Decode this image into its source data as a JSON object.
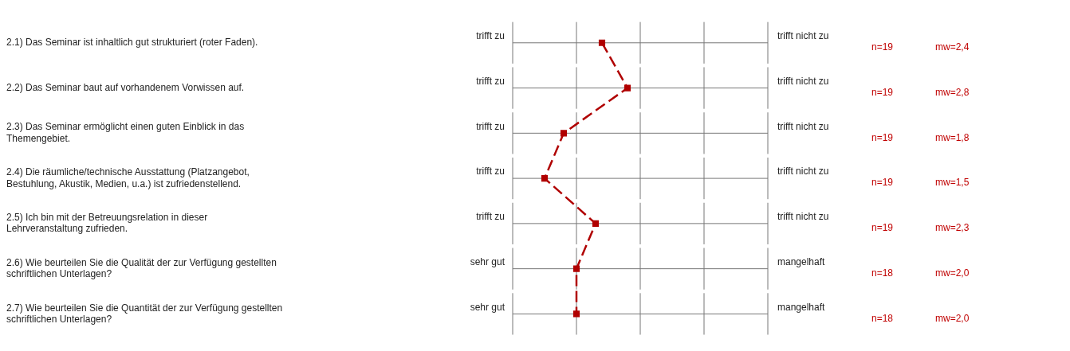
{
  "chart_data": {
    "type": "line",
    "orientation": "horizontal",
    "categories": [
      "2.1) Das Seminar ist inhaltlich gut strukturiert (roter Faden).",
      "2.2) Das Seminar baut auf vorhandenem Vorwissen auf.",
      "2.3) Das Seminar ermöglicht einen guten Einblick in das Themengebiet.",
      "2.4) Die räumliche/technische Ausstattung (Platzangebot, Bestuhlung, Akustik, Medien, u.a.) ist zufriedenstellend.",
      "2.5) Ich bin mit der Betreuungsrelation in dieser Lehrveranstaltung zufrieden.",
      "2.6) Wie beurteilen Sie die Qualität der zur Verfügung gestellten schriftlichen Unterlagen?",
      "2.7) Wie beurteilen Sie die Quantität der zur Verfügung gestellten schriftlichen Unterlagen?"
    ],
    "series": [
      {
        "color": "#b00000",
        "values": [
          2.4,
          2.8,
          1.8,
          1.5,
          2.3,
          2.0,
          2.0
        ],
        "value_labels": [
          "mw=2,4",
          "mw=2,8",
          "mw=1,8",
          "mw=1,5",
          "mw=2,3",
          "mw=2,0",
          "mw=2,0"
        ]
      }
    ],
    "xlim": [
      1,
      5
    ],
    "tick_labels": "y",
    "grid": true,
    "legend": false,
    "marker": "square",
    "line_style": "dashed",
    "annotations": [
      "trifft zu",
      "trifft nicht zu",
      "n=19",
      "trifft zu",
      "trifft nicht zu",
      "n=19",
      "trifft zu",
      "trifft nicht zu",
      "n=19",
      "trifft zu",
      "trifft nicht zu",
      "n=19",
      "trifft zu",
      "trifft nicht zu",
      "n=19",
      "sehr gut",
      "mangelhaft",
      "n=18",
      "sehr gut",
      "mangelhaft",
      "n=18"
    ]
  }
}
